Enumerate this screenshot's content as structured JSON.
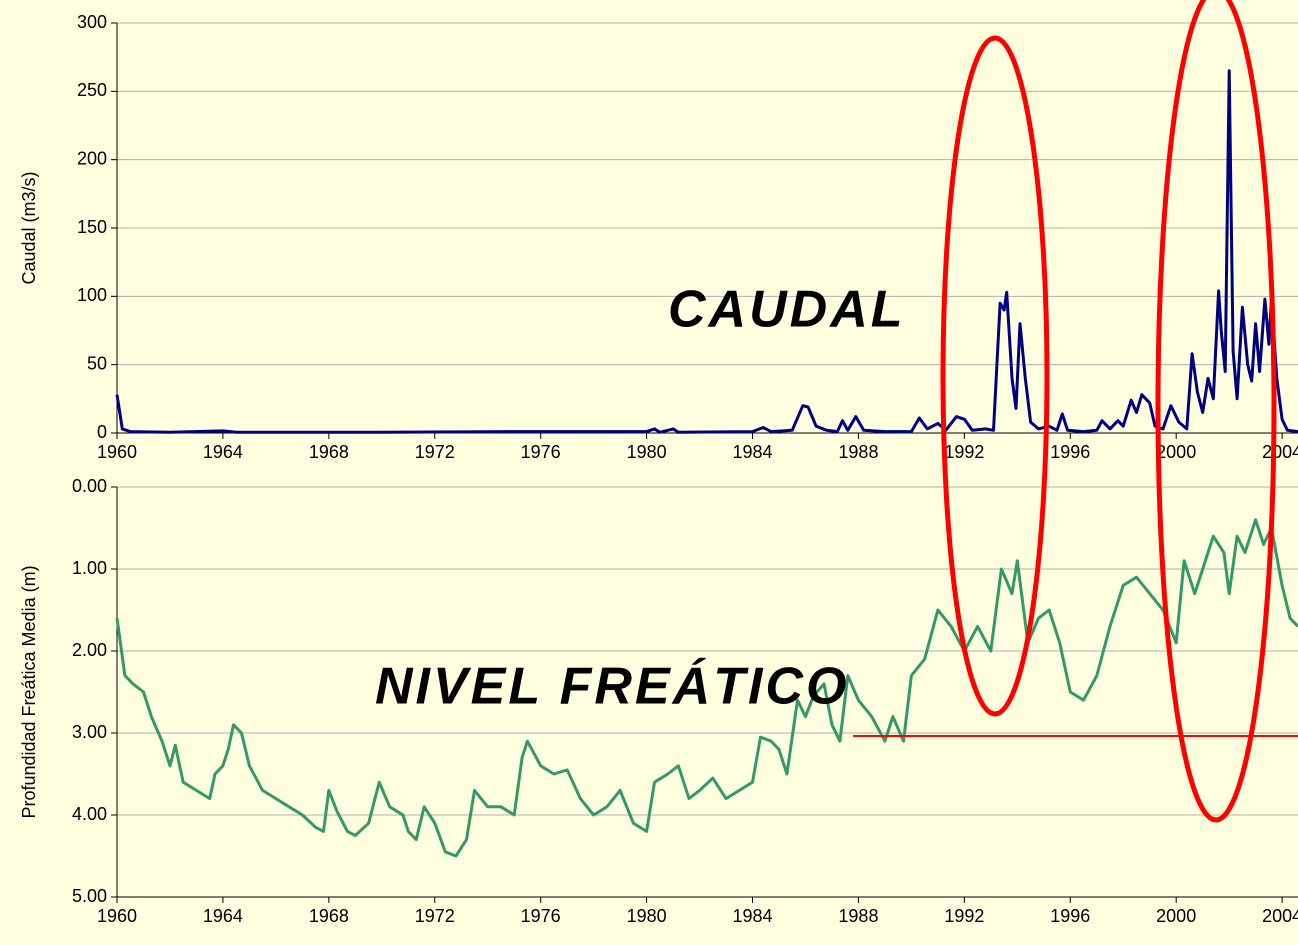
{
  "chart_data": [
    {
      "type": "line",
      "ylabel": "Caudal (m3/s)",
      "annotation": "CAUDAL",
      "color": "#000080",
      "xlim": [
        1960,
        2004.6
      ],
      "xticks": [
        1960,
        1964,
        1968,
        1972,
        1976,
        1980,
        1984,
        1988,
        1992,
        1996,
        2000,
        2004
      ],
      "ylim": [
        0,
        300
      ],
      "yticks": [
        0,
        50,
        100,
        150,
        200,
        250,
        300
      ],
      "grid": true,
      "x": [
        1960,
        1960.2,
        1960.5,
        1962,
        1964,
        1964.5,
        1970,
        1975,
        1980,
        1980.3,
        1980.5,
        1981,
        1981.2,
        1984,
        1984.4,
        1984.7,
        1985.5,
        1985.9,
        1986.1,
        1986.4,
        1986.8,
        1987.2,
        1987.4,
        1987.6,
        1987.9,
        1988.2,
        1989,
        1990,
        1990.3,
        1990.6,
        1991,
        1991.3,
        1991.7,
        1992,
        1992.3,
        1992.8,
        1993.1,
        1993.35,
        1993.5,
        1993.6,
        1993.8,
        1993.95,
        1994.1,
        1994.3,
        1994.5,
        1994.8,
        1995.2,
        1995.5,
        1995.7,
        1995.9,
        1996.5,
        1997,
        1997.2,
        1997.5,
        1997.8,
        1998,
        1998.3,
        1998.5,
        1998.7,
        1999,
        1999.2,
        1999.5,
        1999.8,
        2000.1,
        2000.4,
        2000.6,
        2000.8,
        2001,
        2001.2,
        2001.4,
        2001.6,
        2001.7,
        2001.85,
        2002,
        2002.15,
        2002.3,
        2002.5,
        2002.7,
        2002.85,
        2003,
        2003.15,
        2003.35,
        2003.5,
        2003.6,
        2003.8,
        2004,
        2004.2,
        2004.6
      ],
      "values": [
        28,
        3,
        1,
        0.5,
        1.5,
        0.5,
        0.5,
        1,
        1,
        3,
        0.5,
        3,
        0.5,
        1,
        4,
        1,
        2,
        20,
        19,
        5,
        2,
        1,
        9,
        2,
        12,
        2,
        1,
        1,
        11,
        3,
        7,
        2,
        12,
        10,
        2,
        3,
        2,
        95,
        90,
        103,
        40,
        18,
        80,
        40,
        8,
        3,
        5,
        2,
        14,
        2,
        1,
        2,
        9,
        3,
        9,
        5,
        24,
        15,
        28,
        22,
        5,
        3,
        20,
        8,
        3,
        58,
        30,
        15,
        40,
        25,
        104,
        75,
        45,
        265,
        60,
        25,
        92,
        50,
        38,
        80,
        45,
        98,
        65,
        98,
        40,
        10,
        2,
        1
      ]
    },
    {
      "type": "line",
      "ylabel": "Profundidad Freática Media (m)",
      "annotation": "NIVEL FREÁTICO",
      "color": "#339966",
      "xlim": [
        1960,
        2004.6
      ],
      "xticks": [
        1960,
        1964,
        1968,
        1972,
        1976,
        1980,
        1984,
        1988,
        1992,
        1996,
        2000,
        2004
      ],
      "ylim": [
        0,
        5
      ],
      "y_reversed": true,
      "yticks": [
        {
          "value": 0,
          "label": "0.00"
        },
        {
          "value": 1,
          "label": "1.00"
        },
        {
          "value": 2,
          "label": "2.00"
        },
        {
          "value": 3,
          "label": "3.00"
        },
        {
          "value": 4,
          "label": "4.00"
        },
        {
          "value": 5,
          "label": "5.00"
        }
      ],
      "grid": true,
      "x": [
        1960,
        1960.3,
        1960.6,
        1961,
        1961.3,
        1961.7,
        1962,
        1962.2,
        1962.5,
        1963,
        1963.5,
        1963.7,
        1964,
        1964.2,
        1964.4,
        1964.7,
        1965,
        1965.5,
        1966,
        1966.5,
        1967,
        1967.5,
        1967.8,
        1968,
        1968.3,
        1968.7,
        1969,
        1969.5,
        1969.9,
        1970.3,
        1970.8,
        1971,
        1971.3,
        1971.6,
        1972,
        1972.4,
        1972.8,
        1973.2,
        1973.5,
        1974,
        1974.5,
        1975,
        1975.3,
        1975.5,
        1976,
        1976.5,
        1977,
        1977.5,
        1978,
        1978.5,
        1979,
        1979.5,
        1980,
        1980.3,
        1980.8,
        1981.2,
        1981.6,
        1982,
        1982.5,
        1983,
        1983.5,
        1984,
        1984.3,
        1984.7,
        1985,
        1985.3,
        1985.7,
        1986,
        1986.3,
        1986.7,
        1987,
        1987.3,
        1987.6,
        1988,
        1988.5,
        1989,
        1989.3,
        1989.7,
        1990,
        1990.5,
        1991,
        1991.5,
        1992,
        1992.5,
        1993,
        1993.4,
        1993.8,
        1994,
        1994.4,
        1994.8,
        1995.2,
        1995.6,
        1996,
        1996.5,
        1997,
        1997.5,
        1998,
        1998.5,
        1999,
        1999.5,
        2000,
        2000.3,
        2000.7,
        2001,
        2001.4,
        2001.8,
        2002,
        2002.3,
        2002.6,
        2003,
        2003.3,
        2003.6,
        2004,
        2004.3,
        2004.6
      ],
      "values": [
        1.6,
        2.3,
        2.4,
        2.5,
        2.8,
        3.1,
        3.4,
        3.15,
        3.6,
        3.7,
        3.8,
        3.5,
        3.4,
        3.2,
        2.9,
        3.0,
        3.4,
        3.7,
        3.8,
        3.9,
        4.0,
        4.15,
        4.2,
        3.7,
        3.95,
        4.2,
        4.25,
        4.1,
        3.6,
        3.9,
        4.0,
        4.2,
        4.3,
        3.9,
        4.1,
        4.45,
        4.5,
        4.3,
        3.7,
        3.9,
        3.9,
        4.0,
        3.3,
        3.1,
        3.4,
        3.5,
        3.45,
        3.8,
        4.0,
        3.9,
        3.7,
        4.1,
        4.2,
        3.6,
        3.5,
        3.4,
        3.8,
        3.7,
        3.55,
        3.8,
        3.7,
        3.6,
        3.05,
        3.1,
        3.2,
        3.5,
        2.6,
        2.8,
        2.55,
        2.4,
        2.9,
        3.1,
        2.3,
        2.6,
        2.8,
        3.1,
        2.8,
        3.1,
        2.3,
        2.1,
        1.5,
        1.7,
        2.0,
        1.7,
        2.0,
        1.0,
        1.3,
        0.9,
        1.9,
        1.6,
        1.5,
        1.9,
        2.5,
        2.6,
        2.3,
        1.7,
        1.2,
        1.1,
        1.3,
        1.5,
        1.9,
        0.9,
        1.3,
        1.0,
        0.6,
        0.8,
        1.3,
        0.6,
        0.8,
        0.4,
        0.7,
        0.5,
        1.2,
        1.6,
        1.7
      ]
    }
  ]
}
